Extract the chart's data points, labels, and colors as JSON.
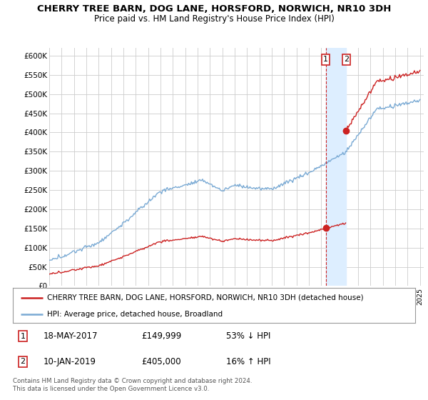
{
  "title": "CHERRY TREE BARN, DOG LANE, HORSFORD, NORWICH, NR10 3DH",
  "subtitle": "Price paid vs. HM Land Registry's House Price Index (HPI)",
  "ylabel_ticks": [
    "£0",
    "£50K",
    "£100K",
    "£150K",
    "£200K",
    "£250K",
    "£300K",
    "£350K",
    "£400K",
    "£450K",
    "£500K",
    "£550K",
    "£600K"
  ],
  "ytick_vals": [
    0,
    50000,
    100000,
    150000,
    200000,
    250000,
    300000,
    350000,
    400000,
    450000,
    500000,
    550000,
    600000
  ],
  "hpi_color": "#7aaad4",
  "price_color": "#cc2222",
  "vline_color": "#cc2222",
  "shade_color": "#ddeeff",
  "marker_color": "#cc2222",
  "transaction1": {
    "date": "18-MAY-2017",
    "price": 149999,
    "label": "1",
    "x": 2017.37
  },
  "transaction2": {
    "date": "10-JAN-2019",
    "price": 405000,
    "label": "2",
    "x": 2019.03
  },
  "legend_entries": [
    "CHERRY TREE BARN, DOG LANE, HORSFORD, NORWICH, NR10 3DH (detached house)",
    "HPI: Average price, detached house, Broadland"
  ],
  "copyright": "Contains HM Land Registry data © Crown copyright and database right 2024.\nThis data is licensed under the Open Government Licence v3.0.",
  "background_color": "#ffffff",
  "grid_color": "#cccccc"
}
